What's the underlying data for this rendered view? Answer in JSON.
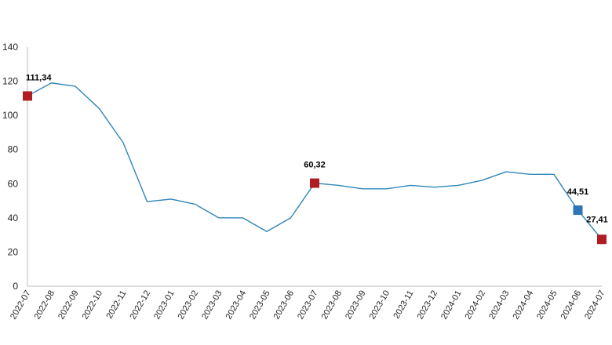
{
  "chart_data": {
    "type": "line",
    "title": "",
    "xlabel": "",
    "ylabel": "",
    "ylim": [
      0,
      140
    ],
    "yticks": [
      0,
      20,
      40,
      60,
      80,
      100,
      120,
      140
    ],
    "grid": false,
    "legend": "none",
    "categories": [
      "2022-07",
      "2022-08",
      "2022-09",
      "2022-10",
      "2022-11",
      "2022-12",
      "2023-01",
      "2023-02",
      "2023-03",
      "2023-04",
      "2023-05",
      "2023-06",
      "2023-07",
      "2023-08",
      "2023-09",
      "2023-10",
      "2023-11",
      "2023-12",
      "2024-01",
      "2024-02",
      "2024-03",
      "2024-04",
      "2024-05",
      "2024-06",
      "2024-07"
    ],
    "series": [
      {
        "values": [
          111.34,
          119,
          117,
          104,
          84,
          49.5,
          51,
          48,
          40,
          40,
          32,
          40,
          60.32,
          59,
          57,
          57,
          59,
          58,
          59,
          62,
          67,
          65.5,
          65.5,
          44.51,
          27.41
        ],
        "color": "#2e86b9"
      }
    ],
    "annotations": [
      {
        "index": 0,
        "label": "111,34",
        "color": "#b01c22"
      },
      {
        "index": 12,
        "label": "60,32",
        "color": "#b01c22"
      },
      {
        "index": 23,
        "label": "44,51",
        "color": "#2e75b6"
      },
      {
        "index": 24,
        "label": "27,41",
        "color": "#b01c22"
      }
    ]
  }
}
